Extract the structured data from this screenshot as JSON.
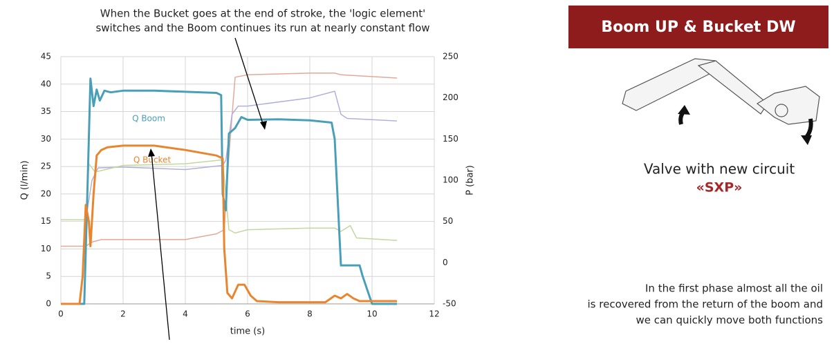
{
  "chart_data": {
    "type": "line",
    "annotation": [
      "When the Bucket goes at the end of stroke, the 'logic element'",
      "switches and the Boom continues its run at nearly constant flow"
    ],
    "x_label": "time (s)",
    "y_label": "Q (l/min)",
    "y2_label": "P (bar)",
    "xlim": [
      0,
      12
    ],
    "xticks": [
      0,
      2,
      4,
      6,
      8,
      10,
      12
    ],
    "ylim": [
      0,
      45
    ],
    "yticks": [
      0,
      5,
      10,
      15,
      20,
      25,
      30,
      35,
      40,
      45
    ],
    "y2lim": [
      -50,
      250
    ],
    "y2ticks": [
      -50,
      0,
      50,
      100,
      150,
      200,
      250
    ],
    "grid": true,
    "series": [
      {
        "color": "#e3a899",
        "axis": "y2",
        "x": [
          0,
          0.8,
          1,
          1.3,
          2,
          4,
          5,
          5.25,
          5.4,
          5.6,
          6,
          8,
          8.8,
          9,
          10.8
        ],
        "values": [
          20,
          20,
          25,
          28,
          28,
          28,
          35,
          40,
          130,
          225,
          228,
          230,
          230,
          228,
          224
        ]
      },
      {
        "color": "#b0b0dc",
        "axis": "y2",
        "x": [
          0,
          0.8,
          1,
          1.2,
          2,
          4,
          5.2,
          5.3,
          5.5,
          5.7,
          6,
          8,
          8.8,
          9,
          9.2,
          10.8
        ],
        "values": [
          52,
          52,
          100,
          115,
          116,
          113,
          118,
          124,
          180,
          190,
          190,
          200,
          208,
          180,
          175,
          172
        ]
      },
      {
        "color": "#c2d89e",
        "axis": "y2",
        "x": [
          0,
          0.8,
          0.9,
          1.1,
          2,
          4,
          5,
          5.2,
          5.4,
          5.6,
          6,
          8,
          8.8,
          9,
          9.3,
          9.5,
          10.8
        ],
        "values": [
          52,
          52,
          120,
          110,
          118,
          120,
          124,
          125,
          40,
          36,
          40,
          42,
          42,
          38,
          45,
          30,
          27
        ]
      },
      {
        "name": "Q Boom",
        "color": "#4a9fb8",
        "x": [
          0,
          0.75,
          0.85,
          0.95,
          1.05,
          1.15,
          1.25,
          1.4,
          1.6,
          2,
          3,
          4,
          5,
          5.15,
          5.2,
          5.3,
          5.4,
          5.6,
          5.8,
          6,
          7,
          8,
          8.7,
          8.8,
          9,
          9.6,
          9.7,
          10,
          10.8
        ],
        "values": [
          0,
          0,
          20,
          41,
          36,
          39,
          37,
          38.8,
          38.5,
          38.8,
          38.8,
          38.6,
          38.4,
          38,
          20,
          17,
          31,
          32,
          34,
          33.5,
          33.6,
          33.4,
          33,
          30,
          7,
          7,
          5,
          0,
          0
        ]
      },
      {
        "name": "Q Bucket",
        "color": "#e8852e",
        "x": [
          0,
          0.6,
          0.7,
          0.8,
          0.9,
          0.95,
          1.05,
          1.15,
          1.3,
          1.5,
          2,
          3,
          4,
          5,
          5.2,
          5.25,
          5.35,
          5.5,
          5.7,
          5.9,
          6.1,
          6.3,
          7,
          8.5,
          8.8,
          9,
          9.2,
          9.4,
          9.6,
          10.8
        ],
        "values": [
          0,
          0,
          5,
          18,
          15,
          10.5,
          20,
          27,
          28,
          28.5,
          28.8,
          28.8,
          28,
          27,
          26.5,
          10,
          2,
          1,
          3.5,
          3.5,
          1.5,
          0.5,
          0.3,
          0.3,
          1.5,
          1,
          1.8,
          1,
          0.5,
          0.5
        ]
      }
    ]
  },
  "panel": {
    "title": "Boom UP & Bucket DW",
    "caption": "Valve with new circuit",
    "name": "«SXP»",
    "note": [
      "In the first phase almost all the oil",
      "is recovered from the return of the boom and",
      "we can quickly move both functions"
    ]
  }
}
